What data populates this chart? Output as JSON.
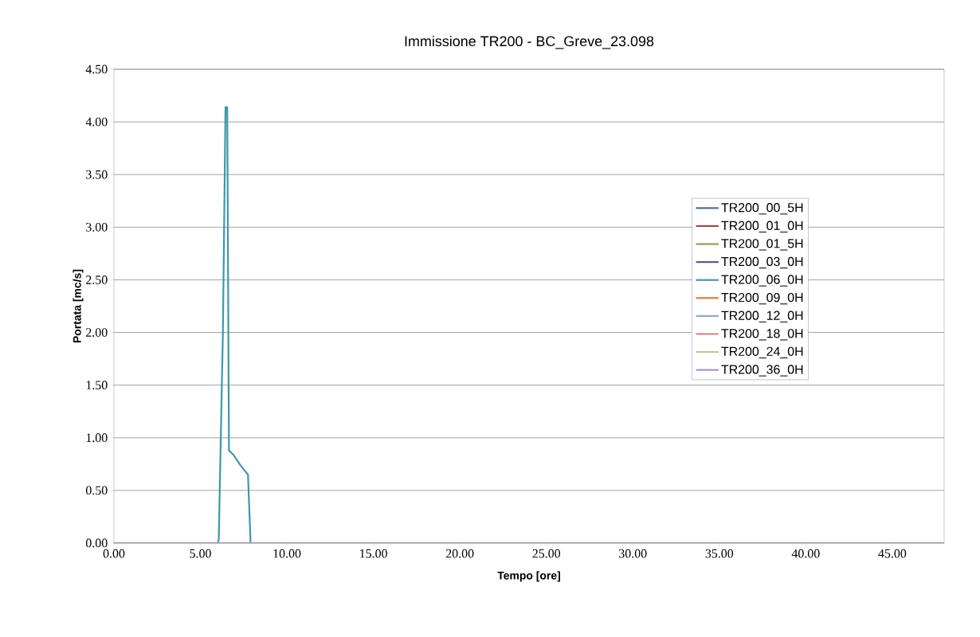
{
  "chart_data": {
    "type": "line",
    "title": "Immissione TR200 - BC_Greve_23.098",
    "xlabel": "Tempo [ore]",
    "ylabel": "Portata [mc/s]",
    "xlim": [
      0,
      48
    ],
    "ylim": [
      0,
      4.5
    ],
    "xticks": [
      {
        "value": 0,
        "label": "0.00"
      },
      {
        "value": 5,
        "label": "5.00"
      },
      {
        "value": 10,
        "label": "10.00"
      },
      {
        "value": 15,
        "label": "15.00"
      },
      {
        "value": 20,
        "label": "20.00"
      },
      {
        "value": 25,
        "label": "25.00"
      },
      {
        "value": 30,
        "label": "30.00"
      },
      {
        "value": 35,
        "label": "35.00"
      },
      {
        "value": 40,
        "label": "40.00"
      },
      {
        "value": 45,
        "label": "45.00"
      }
    ],
    "yticks": [
      {
        "value": 0,
        "label": "0.00"
      },
      {
        "value": 0.5,
        "label": "0.50"
      },
      {
        "value": 1,
        "label": "1.00"
      },
      {
        "value": 1.5,
        "label": "1.50"
      },
      {
        "value": 2,
        "label": "2.00"
      },
      {
        "value": 2.5,
        "label": "2.50"
      },
      {
        "value": 3,
        "label": "3.00"
      },
      {
        "value": 3.5,
        "label": "3.50"
      },
      {
        "value": 4,
        "label": "4.00"
      },
      {
        "value": 4.5,
        "label": "4.50"
      }
    ],
    "grid": "y",
    "legend": "right",
    "series": [
      {
        "name": "TR200_00_5H",
        "color": "#4a6fa5"
      },
      {
        "name": "TR200_01_0H",
        "color": "#a94442"
      },
      {
        "name": "TR200_01_5H",
        "color": "#86a34a"
      },
      {
        "name": "TR200_03_0H",
        "color": "#6a5190"
      },
      {
        "name": "TR200_06_0H",
        "color": "#3d97ae",
        "x": [
          6.0,
          6.06,
          6.3,
          6.45,
          6.55,
          6.65,
          6.9,
          7.31,
          7.65,
          7.75,
          7.9
        ],
        "values": [
          0,
          0.03,
          2.0,
          4.14,
          4.14,
          0.88,
          0.84,
          0.74,
          0.67,
          0.65,
          0
        ]
      },
      {
        "name": "TR200_09_0H",
        "color": "#e07f34"
      },
      {
        "name": "TR200_12_0H",
        "color": "#8ea8cc"
      },
      {
        "name": "TR200_18_0H",
        "color": "#d08b89"
      },
      {
        "name": "TR200_24_0H",
        "color": "#b6cd8e"
      },
      {
        "name": "TR200_36_0H",
        "color": "#a696c1",
        "x": [
          0,
          48
        ],
        "values": [
          0,
          0
        ]
      }
    ]
  }
}
